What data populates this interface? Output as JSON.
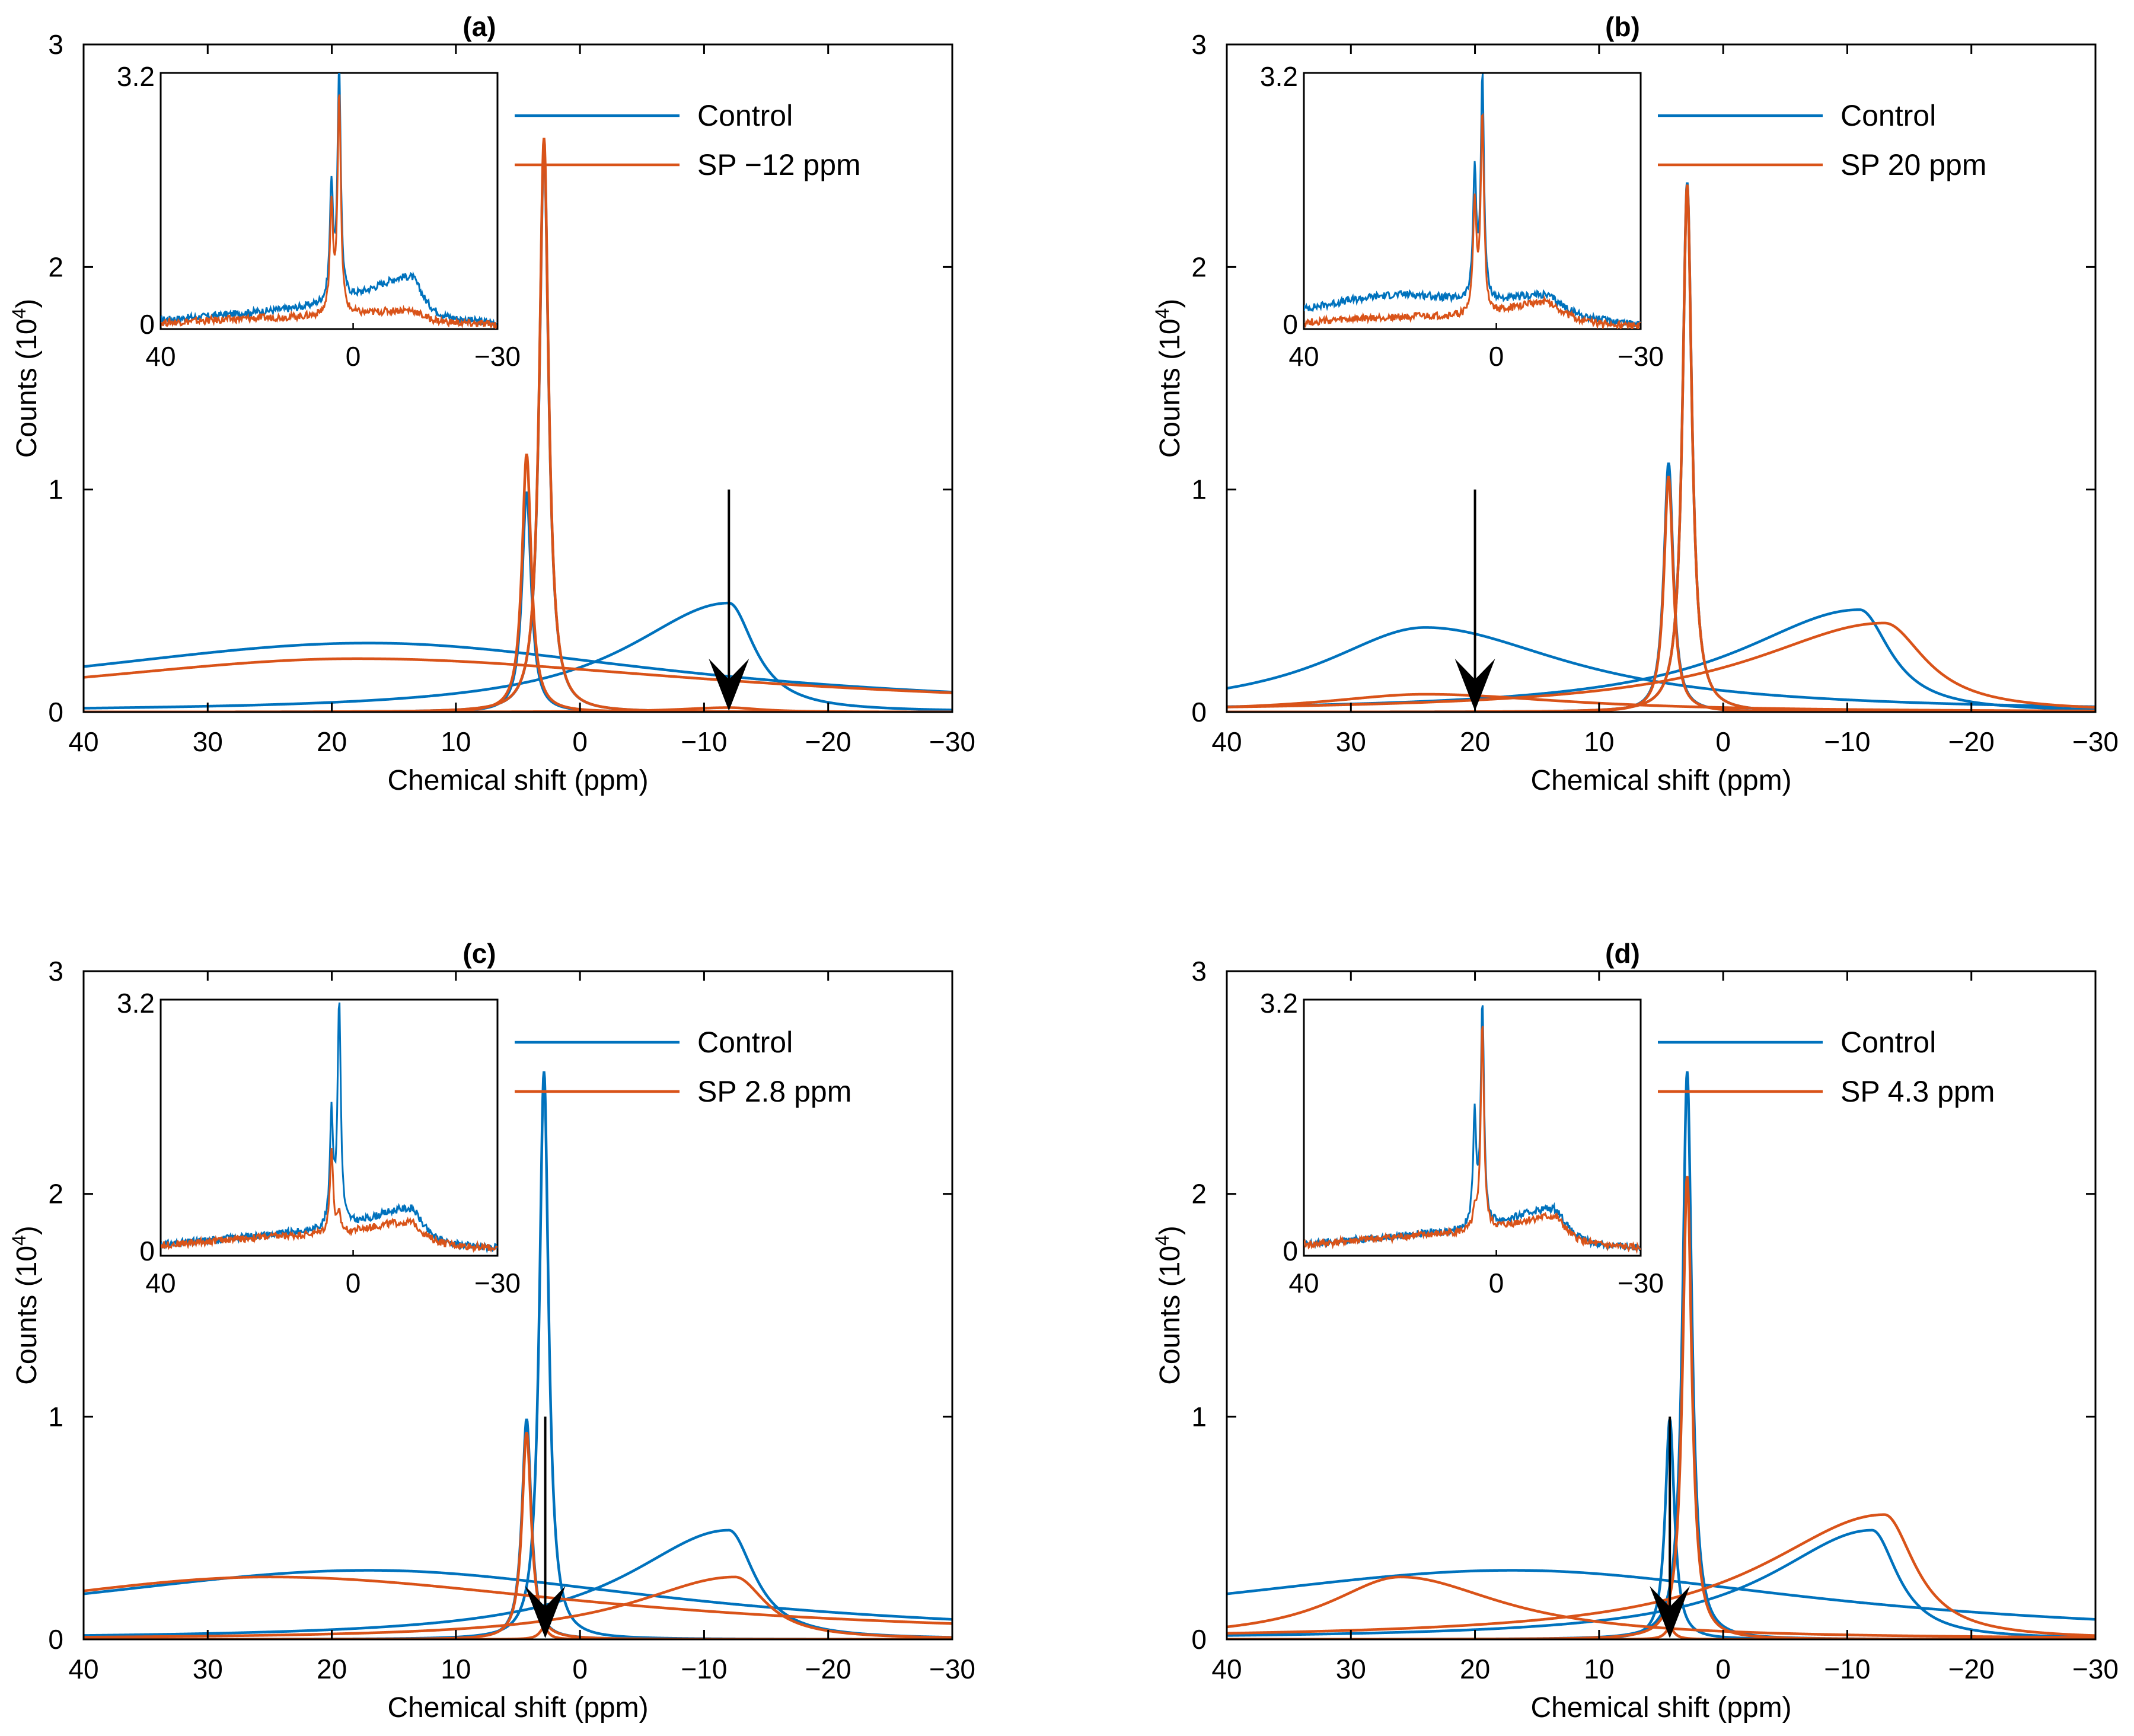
{
  "figure": {
    "colors": {
      "control": "#0072BD",
      "sp": "#D95319",
      "arrow": "#000000",
      "axis": "#000000"
    }
  },
  "chart_data": [
    {
      "panel": "(a)",
      "type": "line",
      "title": "(a)",
      "xlabel": "Chemical shift (ppm)",
      "ylabel": "Counts (10^4)",
      "ylabel_base": "Counts (10",
      "ylabel_exp": "4",
      "ylabel_end": ")",
      "xlim": [
        40,
        -30
      ],
      "ylim": [
        0,
        3
      ],
      "xticks": [
        40,
        30,
        20,
        10,
        0,
        -10,
        -20,
        -30
      ],
      "xtick_labels": [
        "40",
        "30",
        "20",
        "10",
        "0",
        "−10",
        "−20",
        "−30"
      ],
      "yticks": [
        0,
        1,
        2,
        3
      ],
      "ytick_labels": [
        "0",
        "1",
        "2",
        "3"
      ],
      "legend": [
        "Control",
        "SP −12 ppm"
      ],
      "legend_position": "top-right",
      "saturation_arrow_ppm": -12,
      "series": [
        {
          "name": "Control",
          "color": "#0072BD",
          "components": [
            {
              "shape": "asym",
              "center": 17,
              "amp": 0.31,
              "wl": 32,
              "wr": 30
            },
            {
              "shape": "asym",
              "center": -12,
              "amp": 0.49,
              "wl": 10,
              "wr": 2.5
            },
            {
              "shape": "lor",
              "center": 4.3,
              "amp": 0.99,
              "w": 0.45
            },
            {
              "shape": "lor",
              "center": 2.9,
              "amp": 2.55,
              "w": 0.45
            }
          ]
        },
        {
          "name": "SP −12 ppm",
          "color": "#D95319",
          "components": [
            {
              "shape": "asym",
              "center": 18,
              "amp": 0.24,
              "wl": 30,
              "wr": 36
            },
            {
              "shape": "asym",
              "center": -12,
              "amp": 0.02,
              "wl": 5,
              "wr": 3
            },
            {
              "shape": "lor",
              "center": 4.3,
              "amp": 1.16,
              "w": 0.45
            },
            {
              "shape": "lor",
              "center": 2.9,
              "amp": 2.58,
              "w": 0.45
            }
          ]
        }
      ],
      "inset": {
        "xlim": [
          40,
          -30
        ],
        "ylim": [
          0,
          3.2
        ],
        "xtick_labels": [
          "40",
          "0",
          "−30"
        ],
        "ytick_labels": [
          "0",
          "3.2"
        ],
        "series": [
          {
            "name": "Control",
            "color": "#0072BD",
            "components": [
              {
                "shape": "asym",
                "center": 15,
                "amp": 0.15,
                "wl": 30,
                "wr": 40
              },
              {
                "shape": "asym",
                "center": -12,
                "amp": 0.55,
                "wl": 12,
                "wr": 3
              },
              {
                "shape": "lor",
                "center": 4.5,
                "amp": 1.45,
                "w": 0.4
              },
              {
                "shape": "lor",
                "center": 2.9,
                "amp": 2.9,
                "w": 0.4
              }
            ]
          },
          {
            "name": "SP",
            "color": "#D95319",
            "components": [
              {
                "shape": "asym",
                "center": 15,
                "amp": 0.12,
                "wl": 30,
                "wr": 40
              },
              {
                "shape": "asym",
                "center": -12,
                "amp": 0.15,
                "wl": 12,
                "wr": 3
              },
              {
                "shape": "lor",
                "center": 4.5,
                "amp": 1.3,
                "w": 0.4
              },
              {
                "shape": "lor",
                "center": 2.9,
                "amp": 2.75,
                "w": 0.4
              }
            ]
          }
        ]
      }
    },
    {
      "panel": "(b)",
      "type": "line",
      "title": "(b)",
      "xlabel": "Chemical shift (ppm)",
      "ylabel": "Counts (10^4)",
      "ylabel_base": "Counts (10",
      "ylabel_exp": "4",
      "ylabel_end": ")",
      "xlim": [
        40,
        -30
      ],
      "ylim": [
        0,
        3
      ],
      "xticks": [
        40,
        30,
        20,
        10,
        0,
        -10,
        -20,
        -30
      ],
      "xtick_labels": [
        "40",
        "30",
        "20",
        "10",
        "0",
        "−10",
        "−20",
        "−30"
      ],
      "yticks": [
        0,
        1,
        2,
        3
      ],
      "ytick_labels": [
        "0",
        "1",
        "2",
        "3"
      ],
      "legend": [
        "Control",
        "SP 20 ppm"
      ],
      "legend_position": "top-right",
      "saturation_arrow_ppm": 20,
      "series": [
        {
          "name": "Control",
          "color": "#0072BD",
          "components": [
            {
              "shape": "asym",
              "center": 24,
              "amp": 0.38,
              "wl": 10,
              "wr": 14
            },
            {
              "shape": "asym",
              "center": -11,
              "amp": 0.46,
              "wl": 12,
              "wr": 3
            },
            {
              "shape": "lor",
              "center": 4.4,
              "amp": 1.12,
              "w": 0.45
            },
            {
              "shape": "lor",
              "center": 2.9,
              "amp": 2.38,
              "w": 0.45
            }
          ]
        },
        {
          "name": "SP 20 ppm",
          "color": "#D95319",
          "components": [
            {
              "shape": "asym",
              "center": 24,
              "amp": 0.08,
              "wl": 10,
              "wr": 14
            },
            {
              "shape": "asym",
              "center": -13,
              "amp": 0.4,
              "wl": 13,
              "wr": 4
            },
            {
              "shape": "lor",
              "center": 4.4,
              "amp": 1.06,
              "w": 0.45
            },
            {
              "shape": "lor",
              "center": 2.9,
              "amp": 2.37,
              "w": 0.45
            }
          ]
        }
      ],
      "inset": {
        "xlim": [
          40,
          -30
        ],
        "ylim": [
          0,
          3.2
        ],
        "xtick_labels": [
          "40",
          "0",
          "−30"
        ],
        "ytick_labels": [
          "0",
          "3.2"
        ],
        "series": [
          {
            "name": "Control",
            "color": "#0072BD",
            "components": [
              {
                "shape": "asym",
                "center": 20,
                "amp": 0.4,
                "wl": 25,
                "wr": 20
              },
              {
                "shape": "asym",
                "center": -10,
                "amp": 0.3,
                "wl": 10,
                "wr": 5
              },
              {
                "shape": "lor",
                "center": 4.5,
                "amp": 1.6,
                "w": 0.4
              },
              {
                "shape": "lor",
                "center": 2.9,
                "amp": 2.8,
                "w": 0.4
              }
            ]
          },
          {
            "name": "SP",
            "color": "#D95319",
            "components": [
              {
                "shape": "asym",
                "center": 20,
                "amp": 0.12,
                "wl": 25,
                "wr": 20
              },
              {
                "shape": "asym",
                "center": -10,
                "amp": 0.3,
                "wl": 10,
                "wr": 5
              },
              {
                "shape": "lor",
                "center": 4.5,
                "amp": 1.4,
                "w": 0.4
              },
              {
                "shape": "lor",
                "center": 2.9,
                "amp": 2.5,
                "w": 0.4
              }
            ]
          }
        ]
      }
    },
    {
      "panel": "(c)",
      "type": "line",
      "title": "(c)",
      "xlabel": "Chemical shift (ppm)",
      "ylabel": "Counts (10^4)",
      "ylabel_base": "Counts (10",
      "ylabel_exp": "4",
      "ylabel_end": ")",
      "xlim": [
        40,
        -30
      ],
      "ylim": [
        0,
        3
      ],
      "xticks": [
        40,
        30,
        20,
        10,
        0,
        -10,
        -20,
        -30
      ],
      "xtick_labels": [
        "40",
        "30",
        "20",
        "10",
        "0",
        "−10",
        "−20",
        "−30"
      ],
      "yticks": [
        0,
        1,
        2,
        3
      ],
      "ytick_labels": [
        "0",
        "1",
        "2",
        "3"
      ],
      "legend": [
        "Control",
        "SP 2.8 ppm"
      ],
      "legend_position": "top-right",
      "saturation_arrow_ppm": 2.8,
      "series": [
        {
          "name": "Control",
          "color": "#0072BD",
          "components": [
            {
              "shape": "asym",
              "center": 17,
              "amp": 0.31,
              "wl": 32,
              "wr": 30
            },
            {
              "shape": "asym",
              "center": -12,
              "amp": 0.49,
              "wl": 10,
              "wr": 2.5
            },
            {
              "shape": "lor",
              "center": 4.3,
              "amp": 0.99,
              "w": 0.45
            },
            {
              "shape": "lor",
              "center": 2.9,
              "amp": 2.55,
              "w": 0.45
            }
          ]
        },
        {
          "name": "SP 2.8 ppm",
          "color": "#D95319",
          "components": [
            {
              "shape": "asym",
              "center": 25,
              "amp": 0.28,
              "wl": 28,
              "wr": 32
            },
            {
              "shape": "asym",
              "center": -12.5,
              "amp": 0.28,
              "wl": 10,
              "wr": 3
            },
            {
              "shape": "lor",
              "center": 4.3,
              "amp": 0.93,
              "w": 0.45
            },
            {
              "shape": "lor",
              "center": 2.9,
              "amp": 0.05,
              "w": 0.45
            }
          ]
        }
      ],
      "inset": {
        "xlim": [
          40,
          -30
        ],
        "ylim": [
          0,
          3.2
        ],
        "xtick_labels": [
          "40",
          "0",
          "−30"
        ],
        "ytick_labels": [
          "0",
          "3.2"
        ],
        "series": [
          {
            "name": "Control",
            "color": "#0072BD",
            "components": [
              {
                "shape": "asym",
                "center": 15,
                "amp": 0.2,
                "wl": 30,
                "wr": 40
              },
              {
                "shape": "asym",
                "center": -12,
                "amp": 0.45,
                "wl": 12,
                "wr": 3
              },
              {
                "shape": "lor",
                "center": 4.5,
                "amp": 1.4,
                "w": 0.4
              },
              {
                "shape": "lor",
                "center": 2.9,
                "amp": 2.8,
                "w": 0.4
              }
            ]
          },
          {
            "name": "SP",
            "color": "#D95319",
            "components": [
              {
                "shape": "asym",
                "center": 15,
                "amp": 0.2,
                "wl": 30,
                "wr": 40
              },
              {
                "shape": "asym",
                "center": -12,
                "amp": 0.28,
                "wl": 12,
                "wr": 3
              },
              {
                "shape": "lor",
                "center": 4.5,
                "amp": 1.05,
                "w": 0.4
              },
              {
                "shape": "lor",
                "center": 2.9,
                "amp": 0.2,
                "w": 0.4
              }
            ]
          }
        ]
      }
    },
    {
      "panel": "(d)",
      "type": "line",
      "title": "(d)",
      "xlabel": "Chemical shift (ppm)",
      "ylabel": "Counts (10^4)",
      "ylabel_base": "Counts (10",
      "ylabel_exp": "4",
      "ylabel_end": ")",
      "xlim": [
        40,
        -30
      ],
      "ylim": [
        0,
        3
      ],
      "xticks": [
        40,
        30,
        20,
        10,
        0,
        -10,
        -20,
        -30
      ],
      "xtick_labels": [
        "40",
        "30",
        "20",
        "10",
        "0",
        "−10",
        "−20",
        "−30"
      ],
      "yticks": [
        0,
        1,
        2,
        3
      ],
      "ytick_labels": [
        "0",
        "1",
        "2",
        "3"
      ],
      "legend": [
        "Control",
        "SP 4.3 ppm"
      ],
      "legend_position": "top-right",
      "saturation_arrow_ppm": 4.3,
      "series": [
        {
          "name": "Control",
          "color": "#0072BD",
          "components": [
            {
              "shape": "asym",
              "center": 17,
              "amp": 0.31,
              "wl": 32,
              "wr": 30
            },
            {
              "shape": "asym",
              "center": -12,
              "amp": 0.49,
              "wl": 10,
              "wr": 2.5
            },
            {
              "shape": "lor",
              "center": 4.3,
              "amp": 0.99,
              "w": 0.45
            },
            {
              "shape": "lor",
              "center": 2.9,
              "amp": 2.55,
              "w": 0.45
            }
          ]
        },
        {
          "name": "SP 4.3 ppm",
          "color": "#D95319",
          "components": [
            {
              "shape": "asym",
              "center": 26,
              "amp": 0.28,
              "wl": 7,
              "wr": 10
            },
            {
              "shape": "asym",
              "center": -13,
              "amp": 0.56,
              "wl": 12,
              "wr": 3
            },
            {
              "shape": "lor",
              "center": 4.3,
              "amp": 0.05,
              "w": 0.45
            },
            {
              "shape": "lor",
              "center": 2.9,
              "amp": 2.08,
              "w": 0.45
            }
          ]
        }
      ],
      "inset": {
        "xlim": [
          40,
          -30
        ],
        "ylim": [
          0,
          3.2
        ],
        "xtick_labels": [
          "40",
          "0",
          "−30"
        ],
        "ytick_labels": [
          "0",
          "3.2"
        ],
        "series": [
          {
            "name": "Control",
            "color": "#0072BD",
            "components": [
              {
                "shape": "asym",
                "center": 15,
                "amp": 0.2,
                "wl": 30,
                "wr": 40
              },
              {
                "shape": "asym",
                "center": -12,
                "amp": 0.45,
                "wl": 12,
                "wr": 3
              },
              {
                "shape": "lor",
                "center": 4.5,
                "amp": 1.35,
                "w": 0.4
              },
              {
                "shape": "lor",
                "center": 2.9,
                "amp": 2.8,
                "w": 0.4
              }
            ]
          },
          {
            "name": "SP",
            "color": "#D95319",
            "components": [
              {
                "shape": "asym",
                "center": 15,
                "amp": 0.2,
                "wl": 30,
                "wr": 40
              },
              {
                "shape": "asym",
                "center": -12,
                "amp": 0.35,
                "wl": 12,
                "wr": 3
              },
              {
                "shape": "lor",
                "center": 4.5,
                "amp": 0.2,
                "w": 0.4
              },
              {
                "shape": "lor",
                "center": 2.9,
                "amp": 2.6,
                "w": 0.4
              }
            ]
          }
        ]
      }
    }
  ]
}
